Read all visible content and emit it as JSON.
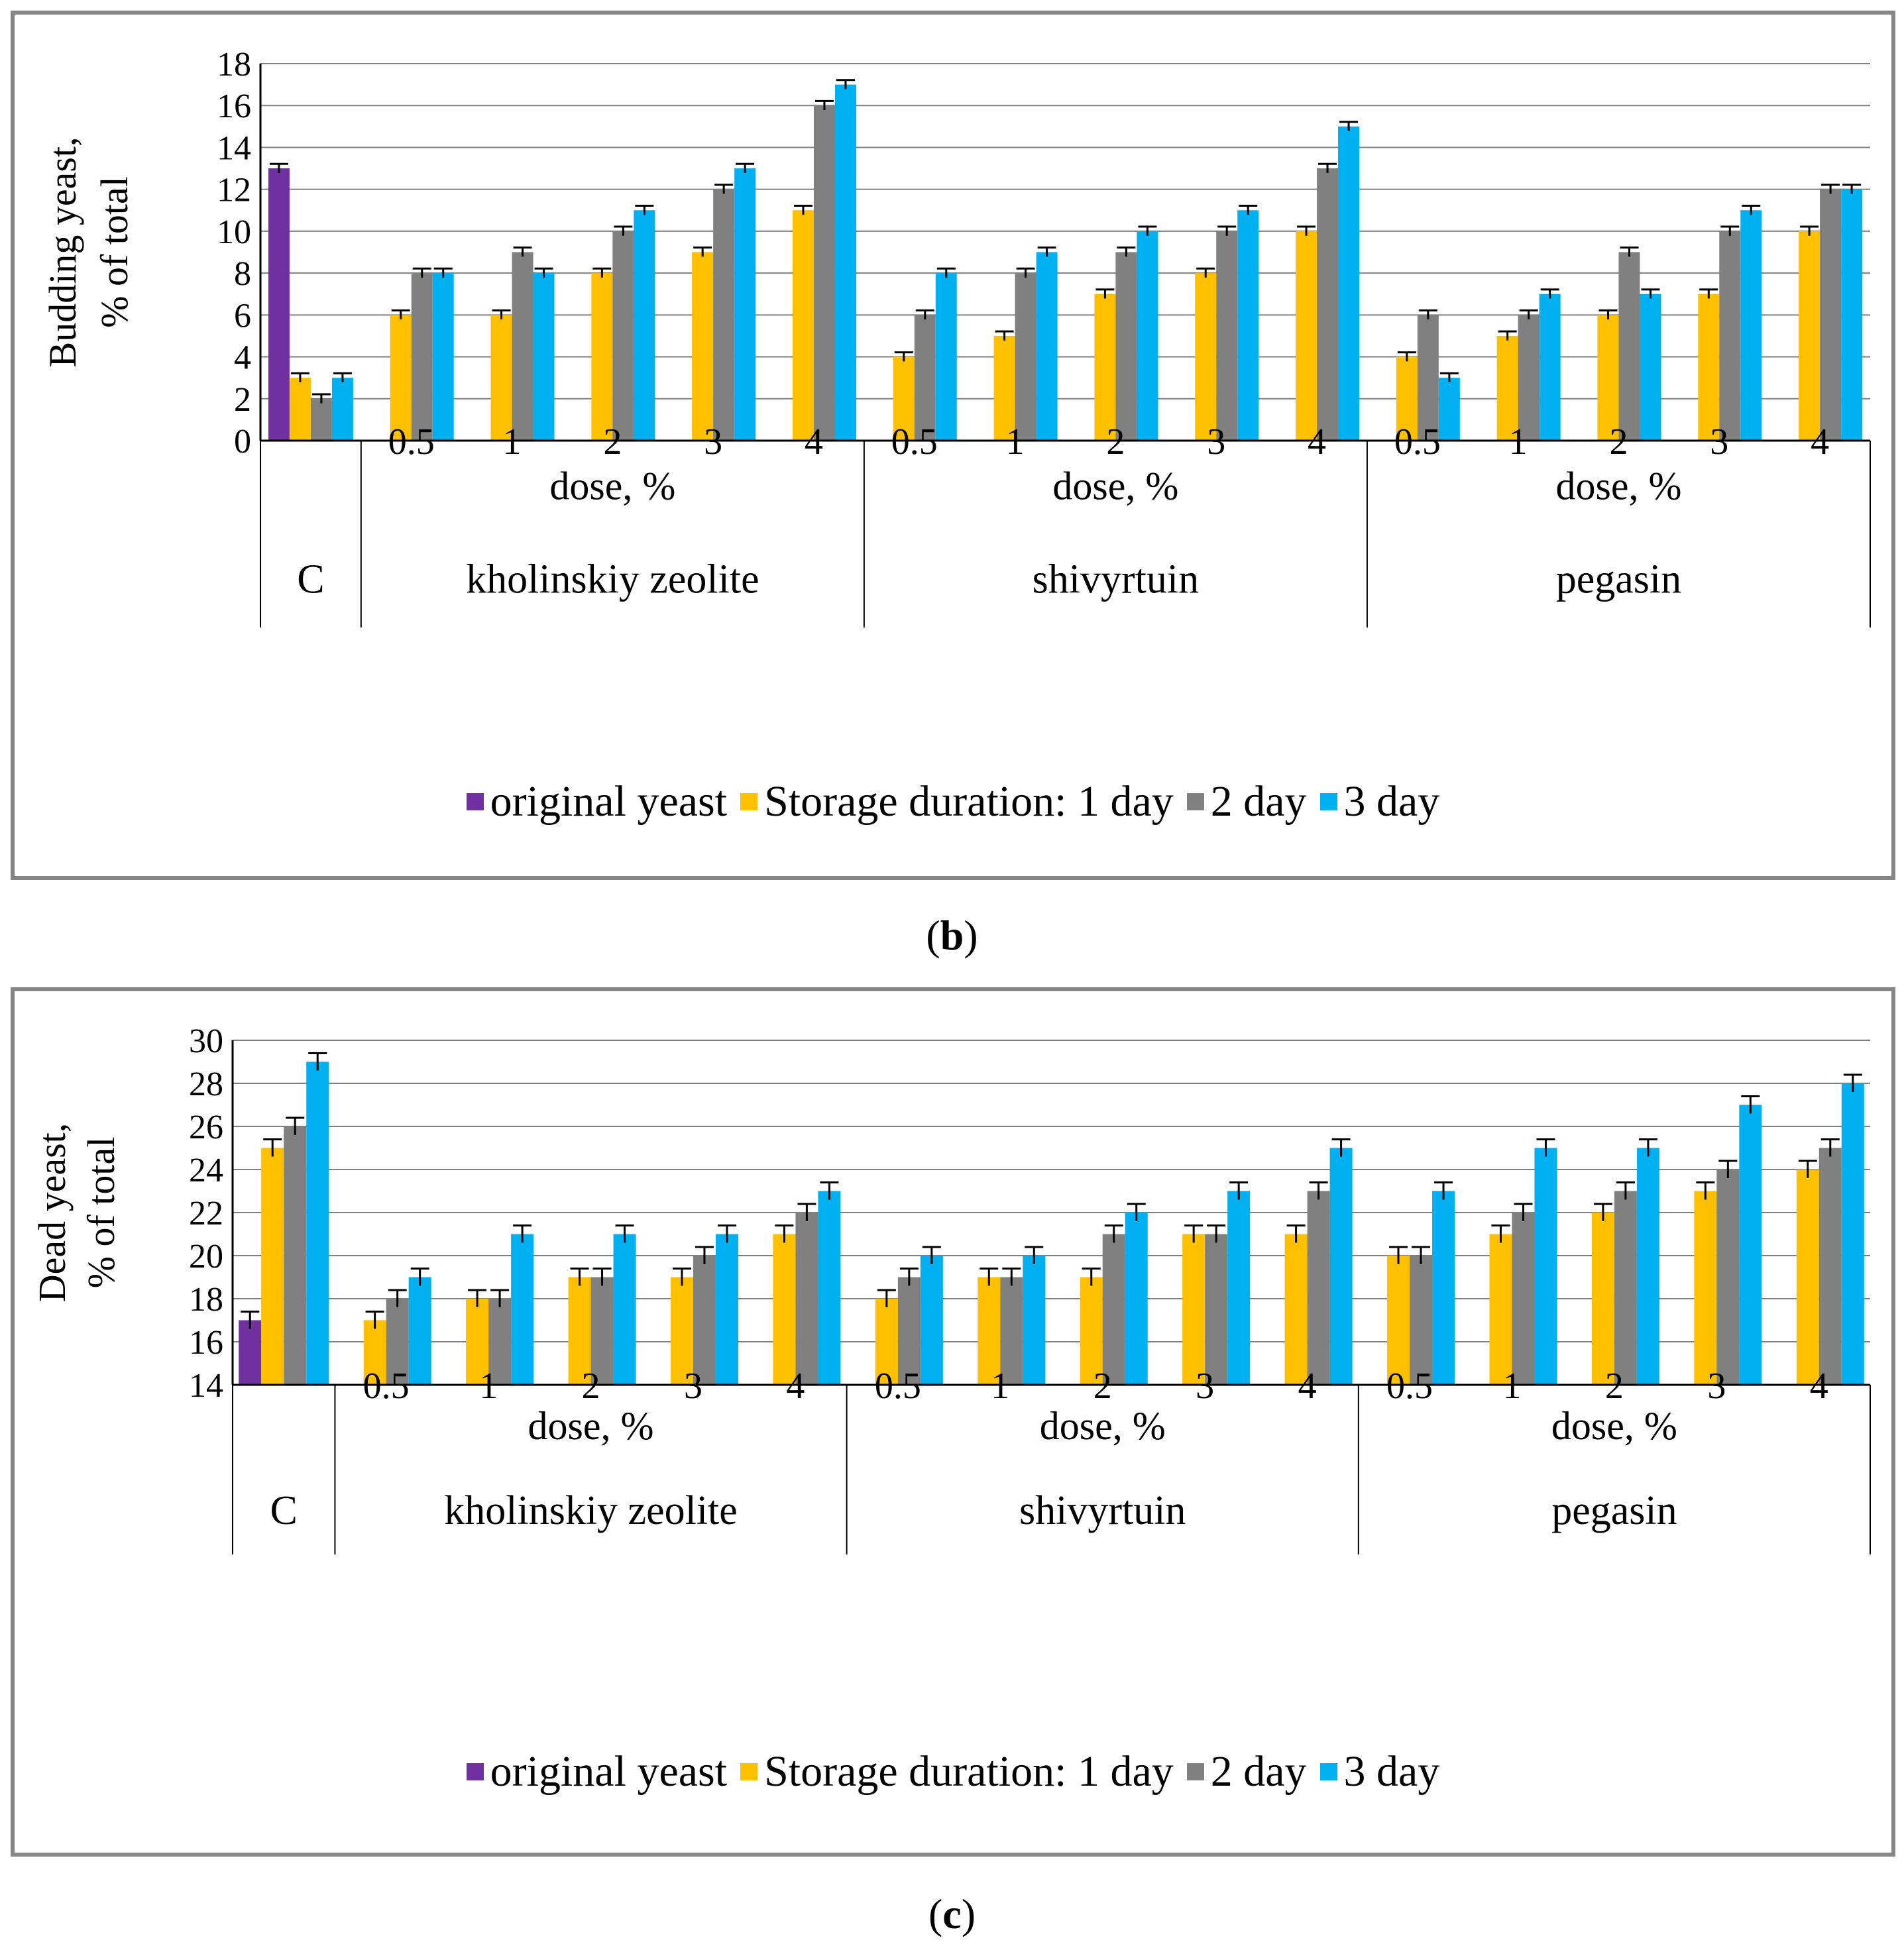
{
  "colors": {
    "original": "#7030A0",
    "day1": "#FFC000",
    "day2": "#808080",
    "day3": "#00B0F0",
    "grid": "#808080",
    "axis": "#000000"
  },
  "legend_labels": [
    "original yeast",
    "Storage duration: 1 day",
    "2 day",
    "3 day"
  ],
  "chart_data": [
    {
      "type": "bar",
      "panel_label": "b",
      "ylabel_line1": "Budding yeast,",
      "ylabel_line2": "% of total",
      "ylim": [
        0,
        18
      ],
      "yticks": [
        "0",
        "2",
        "4",
        "6",
        "8",
        "10",
        "12",
        "14",
        "16",
        "18"
      ],
      "control": {
        "label": "C",
        "original": 13,
        "day1": 3,
        "day2": 2,
        "day3": 3
      },
      "groups": [
        {
          "name": "kholinskiy zeolite",
          "dose_label": "dose, %",
          "doses": [
            "0.5",
            "1",
            "2",
            "3",
            "4"
          ],
          "day1": [
            6,
            6,
            8,
            9,
            11
          ],
          "day2": [
            8,
            9,
            10,
            12,
            16
          ],
          "day3": [
            8,
            8,
            11,
            13,
            17
          ]
        },
        {
          "name": "shivyrtuin",
          "dose_label": "dose, %",
          "doses": [
            "0.5",
            "1",
            "2",
            "3",
            "4"
          ],
          "day1": [
            4,
            5,
            7,
            8,
            10
          ],
          "day2": [
            6,
            8,
            9,
            10,
            13
          ],
          "day3": [
            8,
            9,
            10,
            11,
            15
          ]
        },
        {
          "name": "pegasin",
          "dose_label": "dose, %",
          "doses": [
            "0.5",
            "1",
            "2",
            "3",
            "4"
          ],
          "day1": [
            4,
            5,
            6,
            7,
            10
          ],
          "day2": [
            6,
            6,
            9,
            10,
            12
          ],
          "day3": [
            3,
            7,
            7,
            11,
            12
          ]
        }
      ]
    },
    {
      "type": "bar",
      "panel_label": "c",
      "ylabel_line1": "Dead yeast,",
      "ylabel_line2": "% of total",
      "ylim": [
        14,
        30
      ],
      "yticks": [
        "14",
        "16",
        "18",
        "20",
        "22",
        "24",
        "26",
        "28",
        "30"
      ],
      "control": {
        "label": "C",
        "original": 17,
        "day1": 25,
        "day2": 26,
        "day3": 29
      },
      "groups": [
        {
          "name": "kholinskiy zeolite",
          "dose_label": "dose, %",
          "doses": [
            "0.5",
            "1",
            "2",
            "3",
            "4"
          ],
          "day1": [
            17,
            18,
            19,
            19,
            21
          ],
          "day2": [
            18,
            18,
            19,
            20,
            22
          ],
          "day3": [
            19,
            21,
            21,
            21,
            23
          ]
        },
        {
          "name": "shivyrtuin",
          "dose_label": "dose, %",
          "doses": [
            "0.5",
            "1",
            "2",
            "3",
            "4"
          ],
          "day1": [
            18,
            19,
            19,
            21,
            21
          ],
          "day2": [
            19,
            19,
            21,
            21,
            23
          ],
          "day3": [
            20,
            20,
            22,
            23,
            25
          ]
        },
        {
          "name": "pegasin",
          "dose_label": "dose, %",
          "doses": [
            "0.5",
            "1",
            "2",
            "3",
            "4"
          ],
          "day1": [
            20,
            21,
            22,
            23,
            24
          ],
          "day2": [
            20,
            22,
            23,
            24,
            25
          ],
          "day3": [
            23,
            25,
            25,
            27,
            28
          ]
        }
      ]
    }
  ]
}
